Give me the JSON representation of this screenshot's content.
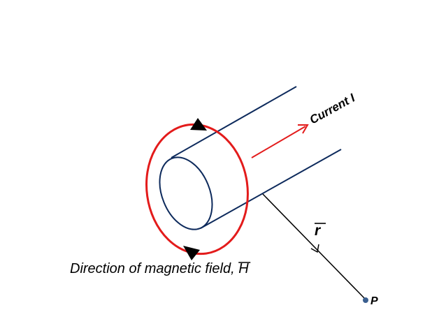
{
  "labels": {
    "current": "Current I",
    "r_symbol": "r",
    "point": "P",
    "magnetic_field": "Direction of magnetic field, ",
    "h_symbol": "H"
  },
  "colors": {
    "conductor": "#0d2a5c",
    "field_loop": "#e31b1b",
    "current_arrow": "#e31b1b",
    "radius_line": "#000000",
    "point_dot": "#3a5f8f",
    "text": "#000000"
  }
}
